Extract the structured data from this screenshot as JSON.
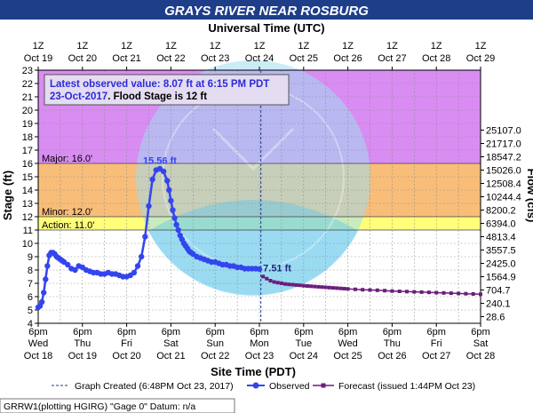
{
  "colors": {
    "title_bar": "#1f3e8a",
    "title_text": "#ffffff",
    "plot_bg": "#ffffff",
    "zone_major": "#d98cf2",
    "zone_moderate": "#f8bd78",
    "zone_minor": "#ffff7a",
    "observed": "#3345ee",
    "forecast": "#6a1e7a",
    "info_box_bg": "#e4dcf0",
    "info_text": "#2d2bd8",
    "grid": "#8a8a8a"
  },
  "chart_data": {
    "type": "line",
    "title": "GRAYS RIVER NEAR ROSBURG",
    "top_axis_label": "Universal Time (UTC)",
    "xlabel": "Site Time (PDT)",
    "ylabel_left": "Stage (ft)",
    "ylabel_right": "Flow (cfs)",
    "ylim": [
      4,
      23
    ],
    "yticks": [
      4,
      5,
      6,
      7,
      8,
      9,
      10,
      11,
      12,
      13,
      14,
      15,
      16,
      17,
      18,
      19,
      20,
      21,
      22,
      23
    ],
    "x_range_hours_label": "Oct 18 6pm PDT to Oct 28 6pm PDT",
    "bottom_ticks": [
      {
        "l1": "6pm",
        "l2": "Wed",
        "l3": "Oct 18"
      },
      {
        "l1": "6pm",
        "l2": "Thu",
        "l3": "Oct 19"
      },
      {
        "l1": "6pm",
        "l2": "Fri",
        "l3": "Oct 20"
      },
      {
        "l1": "6pm",
        "l2": "Sat",
        "l3": "Oct 21"
      },
      {
        "l1": "6pm",
        "l2": "Sun",
        "l3": "Oct 22"
      },
      {
        "l1": "6pm",
        "l2": "Mon",
        "l3": "Oct 23"
      },
      {
        "l1": "6pm",
        "l2": "Tue",
        "l3": "Oct 24"
      },
      {
        "l1": "6pm",
        "l2": "Wed",
        "l3": "Oct 25"
      },
      {
        "l1": "6pm",
        "l2": "Thu",
        "l3": "Oct 26"
      },
      {
        "l1": "6pm",
        "l2": "Fri",
        "l3": "Oct 27"
      },
      {
        "l1": "6pm",
        "l2": "Sat",
        "l3": "Oct 28"
      }
    ],
    "top_ticks": [
      {
        "l1": "1Z",
        "l2": "Oct 19"
      },
      {
        "l1": "1Z",
        "l2": "Oct 20"
      },
      {
        "l1": "1Z",
        "l2": "Oct 21"
      },
      {
        "l1": "1Z",
        "l2": "Oct 22"
      },
      {
        "l1": "1Z",
        "l2": "Oct 23"
      },
      {
        "l1": "1Z",
        "l2": "Oct 24"
      },
      {
        "l1": "1Z",
        "l2": "Oct 25"
      },
      {
        "l1": "1Z",
        "l2": "Oct 26"
      },
      {
        "l1": "1Z",
        "l2": "Oct 27"
      },
      {
        "l1": "1Z",
        "l2": "Oct 28"
      },
      {
        "l1": "1Z",
        "l2": "Oct 29"
      }
    ],
    "flow_ticks": [
      {
        "stage": 4.5,
        "label": "28.6"
      },
      {
        "stage": 5.5,
        "label": "240.1"
      },
      {
        "stage": 6.5,
        "label": "704.7"
      },
      {
        "stage": 7.5,
        "label": "1564.9"
      },
      {
        "stage": 8.5,
        "label": "2425.0"
      },
      {
        "stage": 9.5,
        "label": "3557.5"
      },
      {
        "stage": 10.5,
        "label": "4813.4"
      },
      {
        "stage": 11.5,
        "label": "6394.0"
      },
      {
        "stage": 12.5,
        "label": "8200.2"
      },
      {
        "stage": 13.5,
        "label": "10244.4"
      },
      {
        "stage": 14.5,
        "label": "12508.4"
      },
      {
        "stage": 15.5,
        "label": "15026.0"
      },
      {
        "stage": 16.5,
        "label": "18547.2"
      },
      {
        "stage": 17.5,
        "label": "21717.0"
      },
      {
        "stage": 18.5,
        "label": "25107.0"
      }
    ],
    "flood_categories": [
      {
        "name": "Major",
        "stage": 16.0,
        "label": "Major: 16.0'"
      },
      {
        "name": "Minor",
        "stage": 12.0,
        "label": "Minor: 12.0'"
      },
      {
        "name": "Action",
        "stage": 11.0,
        "label": "Action: 11.0'"
      }
    ],
    "created_time_label": "Graph Created (6:48PM Oct 23, 2017)",
    "created_time_hours": 120.8,
    "observed_legend": "Observed",
    "forecast_legend": "Forecast (issued 1:44PM Oct 23)",
    "observed": {
      "name": "Observed",
      "x_hours": [
        0,
        1,
        2,
        3,
        4,
        5,
        6,
        7,
        8,
        9,
        10,
        11,
        12,
        13,
        14,
        16,
        18,
        20,
        22,
        24,
        26,
        28,
        30,
        32,
        34,
        36,
        38,
        40,
        42,
        44,
        46,
        48,
        50,
        52,
        54,
        56,
        58,
        60,
        62,
        64,
        66,
        68,
        70,
        71,
        72,
        73,
        74,
        75,
        76,
        77,
        78,
        79,
        80,
        81,
        82,
        83,
        84,
        86,
        88,
        90,
        92,
        94,
        96,
        98,
        100,
        102,
        104,
        106,
        108,
        110,
        112,
        114,
        116,
        118,
        120
      ],
      "y": [
        5.2,
        5.3,
        5.6,
        6.3,
        7.3,
        8.3,
        9.1,
        9.3,
        9.3,
        9.2,
        9.0,
        8.9,
        8.8,
        8.7,
        8.6,
        8.4,
        8.1,
        8.0,
        8.3,
        8.2,
        8.0,
        7.9,
        7.8,
        7.8,
        7.7,
        7.7,
        7.8,
        7.7,
        7.7,
        7.6,
        7.5,
        7.5,
        7.6,
        7.8,
        8.3,
        9.0,
        10.5,
        12.8,
        14.8,
        15.5,
        15.6,
        15.4,
        14.7,
        14.0,
        13.2,
        12.5,
        11.9,
        11.4,
        11.0,
        10.6,
        10.3,
        10.0,
        9.8,
        9.6,
        9.4,
        9.3,
        9.2,
        9.0,
        8.9,
        8.8,
        8.7,
        8.6,
        8.6,
        8.5,
        8.4,
        8.4,
        8.3,
        8.3,
        8.2,
        8.2,
        8.1,
        8.1,
        8.1,
        8.1,
        8.07
      ]
    },
    "forecast": {
      "name": "Forecast",
      "x_hours": [
        122,
        124,
        126,
        128,
        130,
        132,
        134,
        136,
        138,
        140,
        142,
        144,
        146,
        148,
        150,
        152,
        154,
        156,
        158,
        160,
        162,
        164,
        166,
        168,
        172,
        176,
        180,
        184,
        188,
        192,
        196,
        200,
        204,
        208,
        212,
        216,
        220,
        224,
        228,
        232,
        236,
        240
      ],
      "y": [
        7.51,
        7.35,
        7.2,
        7.1,
        7.05,
        7.0,
        6.95,
        6.92,
        6.9,
        6.87,
        6.85,
        6.82,
        6.8,
        6.78,
        6.76,
        6.74,
        6.72,
        6.7,
        6.68,
        6.66,
        6.64,
        6.62,
        6.6,
        6.58,
        6.55,
        6.52,
        6.5,
        6.48,
        6.45,
        6.42,
        6.4,
        6.38,
        6.36,
        6.34,
        6.32,
        6.3,
        6.28,
        6.26,
        6.24,
        6.22,
        6.2,
        6.18
      ]
    },
    "annotations": {
      "peak_label": "15.56 ft",
      "peak_x_hours": 66,
      "peak_stage": 15.56,
      "latest_label": "7.51 ft",
      "latest_x_hours": 122,
      "latest_stage": 7.51
    },
    "info_box": {
      "line1": "Latest observed value: 8.07 ft at 6:15 PM PDT",
      "line2_date": "23-Oct-2017",
      "line2_rest": ". Flood Stage is 12 ft"
    },
    "footer": "GRRW1(plotting HGIRG) \"Gage 0\" Datum: n/a",
    "watermark": "NATIONAL OCEANIC AND ATMOSPHERIC ADMINISTRATION / U.S. DEPARTMENT OF COMMERCE / NOAA"
  }
}
